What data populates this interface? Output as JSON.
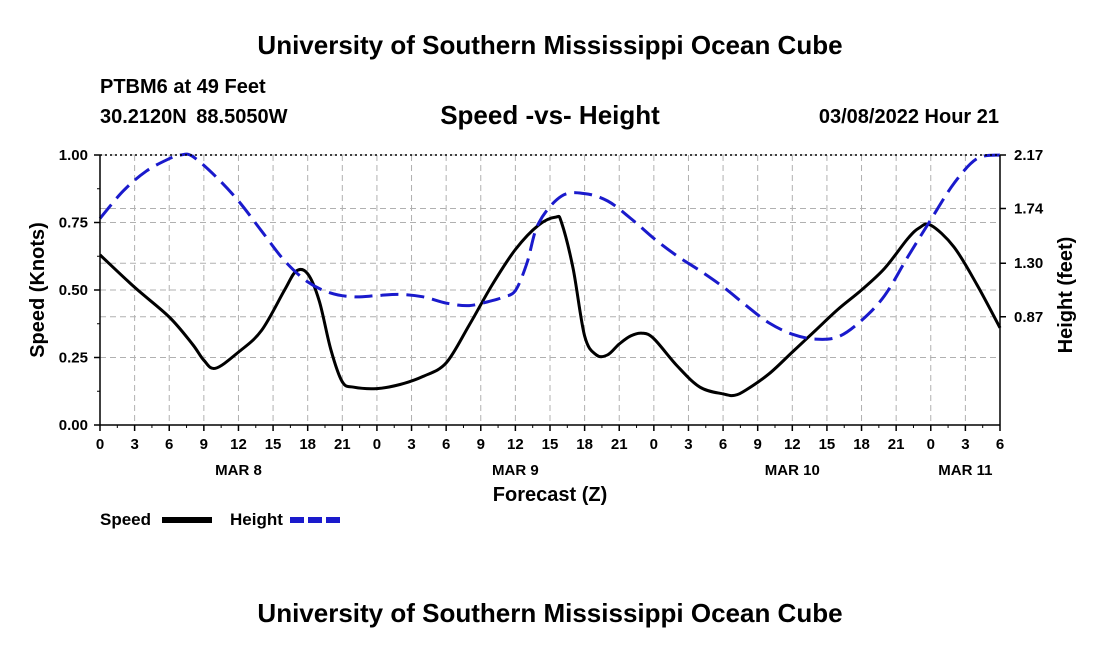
{
  "header": {
    "title": "University of Southern Mississippi Ocean Cube",
    "station": "PTBM6 at 49 Feet",
    "coords": "30.2120N  88.5050W",
    "subtitle": "Speed -vs- Height",
    "datetime": "03/08/2022 Hour 21"
  },
  "footer": {
    "title": "University of Southern Mississippi Ocean Cube"
  },
  "colors": {
    "speed": "#000000",
    "height": "#1a1acc",
    "grid": "#b0b0b0"
  },
  "chart_data": {
    "type": "line",
    "xlabel": "Forecast (Z)",
    "ylabel": "Speed (Knots)",
    "y2label": "Height (feet)",
    "xlim": [
      0,
      78
    ],
    "ylim": [
      0,
      1
    ],
    "y2lim": [
      0,
      2.17
    ],
    "x_tick_labels": [
      "0",
      "3",
      "6",
      "9",
      "12",
      "15",
      "18",
      "21",
      "0",
      "3",
      "6",
      "9",
      "12",
      "15",
      "18",
      "21",
      "0",
      "3",
      "6",
      "9",
      "12",
      "15",
      "18",
      "21",
      "0",
      "3",
      "6"
    ],
    "y_ticks": [
      0,
      0.25,
      0.5,
      0.75,
      1.0
    ],
    "y_tick_labels": [
      "0.00",
      "0.25",
      "0.50",
      "0.75",
      "1.00"
    ],
    "y2_ticks": [
      0.87,
      1.3,
      1.74,
      2.17
    ],
    "y2_tick_labels": [
      "0.87",
      "1.30",
      "1.74",
      "2.17"
    ],
    "day_labels": [
      {
        "label": "MAR 8",
        "x": 12
      },
      {
        "label": "MAR 9",
        "x": 36
      },
      {
        "label": "MAR 10",
        "x": 60
      },
      {
        "label": "MAR 11",
        "x": 75
      }
    ],
    "legend": [
      {
        "name": "Speed"
      },
      {
        "name": "Height"
      }
    ],
    "series": [
      {
        "name": "Speed",
        "axis": "left",
        "style": "solid",
        "x": [
          0,
          3,
          6,
          8,
          9,
          10,
          12,
          14,
          16,
          17,
          18,
          19,
          20,
          21,
          22,
          24,
          26,
          28,
          30,
          32,
          34,
          36,
          38,
          39.5,
          40,
          41,
          42,
          43,
          44,
          45,
          46,
          47,
          48,
          50,
          52,
          54,
          55,
          56,
          58,
          60,
          62,
          64,
          66,
          68,
          70,
          71,
          72,
          74,
          76,
          78
        ],
        "values": [
          0.63,
          0.51,
          0.4,
          0.3,
          0.24,
          0.21,
          0.27,
          0.35,
          0.5,
          0.57,
          0.56,
          0.46,
          0.28,
          0.16,
          0.14,
          0.135,
          0.15,
          0.18,
          0.23,
          0.37,
          0.52,
          0.65,
          0.74,
          0.77,
          0.75,
          0.58,
          0.33,
          0.26,
          0.26,
          0.3,
          0.33,
          0.34,
          0.32,
          0.22,
          0.14,
          0.115,
          0.11,
          0.13,
          0.19,
          0.27,
          0.35,
          0.43,
          0.5,
          0.58,
          0.69,
          0.73,
          0.74,
          0.66,
          0.52,
          0.36
        ]
      },
      {
        "name": "Height",
        "axis": "right",
        "style": "dashed",
        "x": [
          0,
          2,
          4,
          6,
          7,
          8,
          10,
          12,
          14,
          16,
          18,
          20,
          22,
          24,
          26,
          28,
          30,
          32,
          34,
          35,
          36,
          37,
          38,
          40,
          42,
          44,
          46,
          48,
          50,
          52,
          54,
          56,
          58,
          60,
          62,
          64,
          66,
          68,
          70,
          72,
          74,
          76,
          78
        ],
        "values": [
          1.66,
          1.88,
          2.04,
          2.14,
          2.17,
          2.16,
          2.0,
          1.8,
          1.56,
          1.32,
          1.15,
          1.06,
          1.03,
          1.04,
          1.05,
          1.03,
          0.98,
          0.96,
          1.0,
          1.03,
          1.08,
          1.3,
          1.62,
          1.84,
          1.86,
          1.8,
          1.66,
          1.5,
          1.36,
          1.24,
          1.11,
          0.96,
          0.82,
          0.73,
          0.69,
          0.71,
          0.84,
          1.04,
          1.35,
          1.65,
          1.94,
          2.14,
          2.19
        ]
      }
    ]
  }
}
